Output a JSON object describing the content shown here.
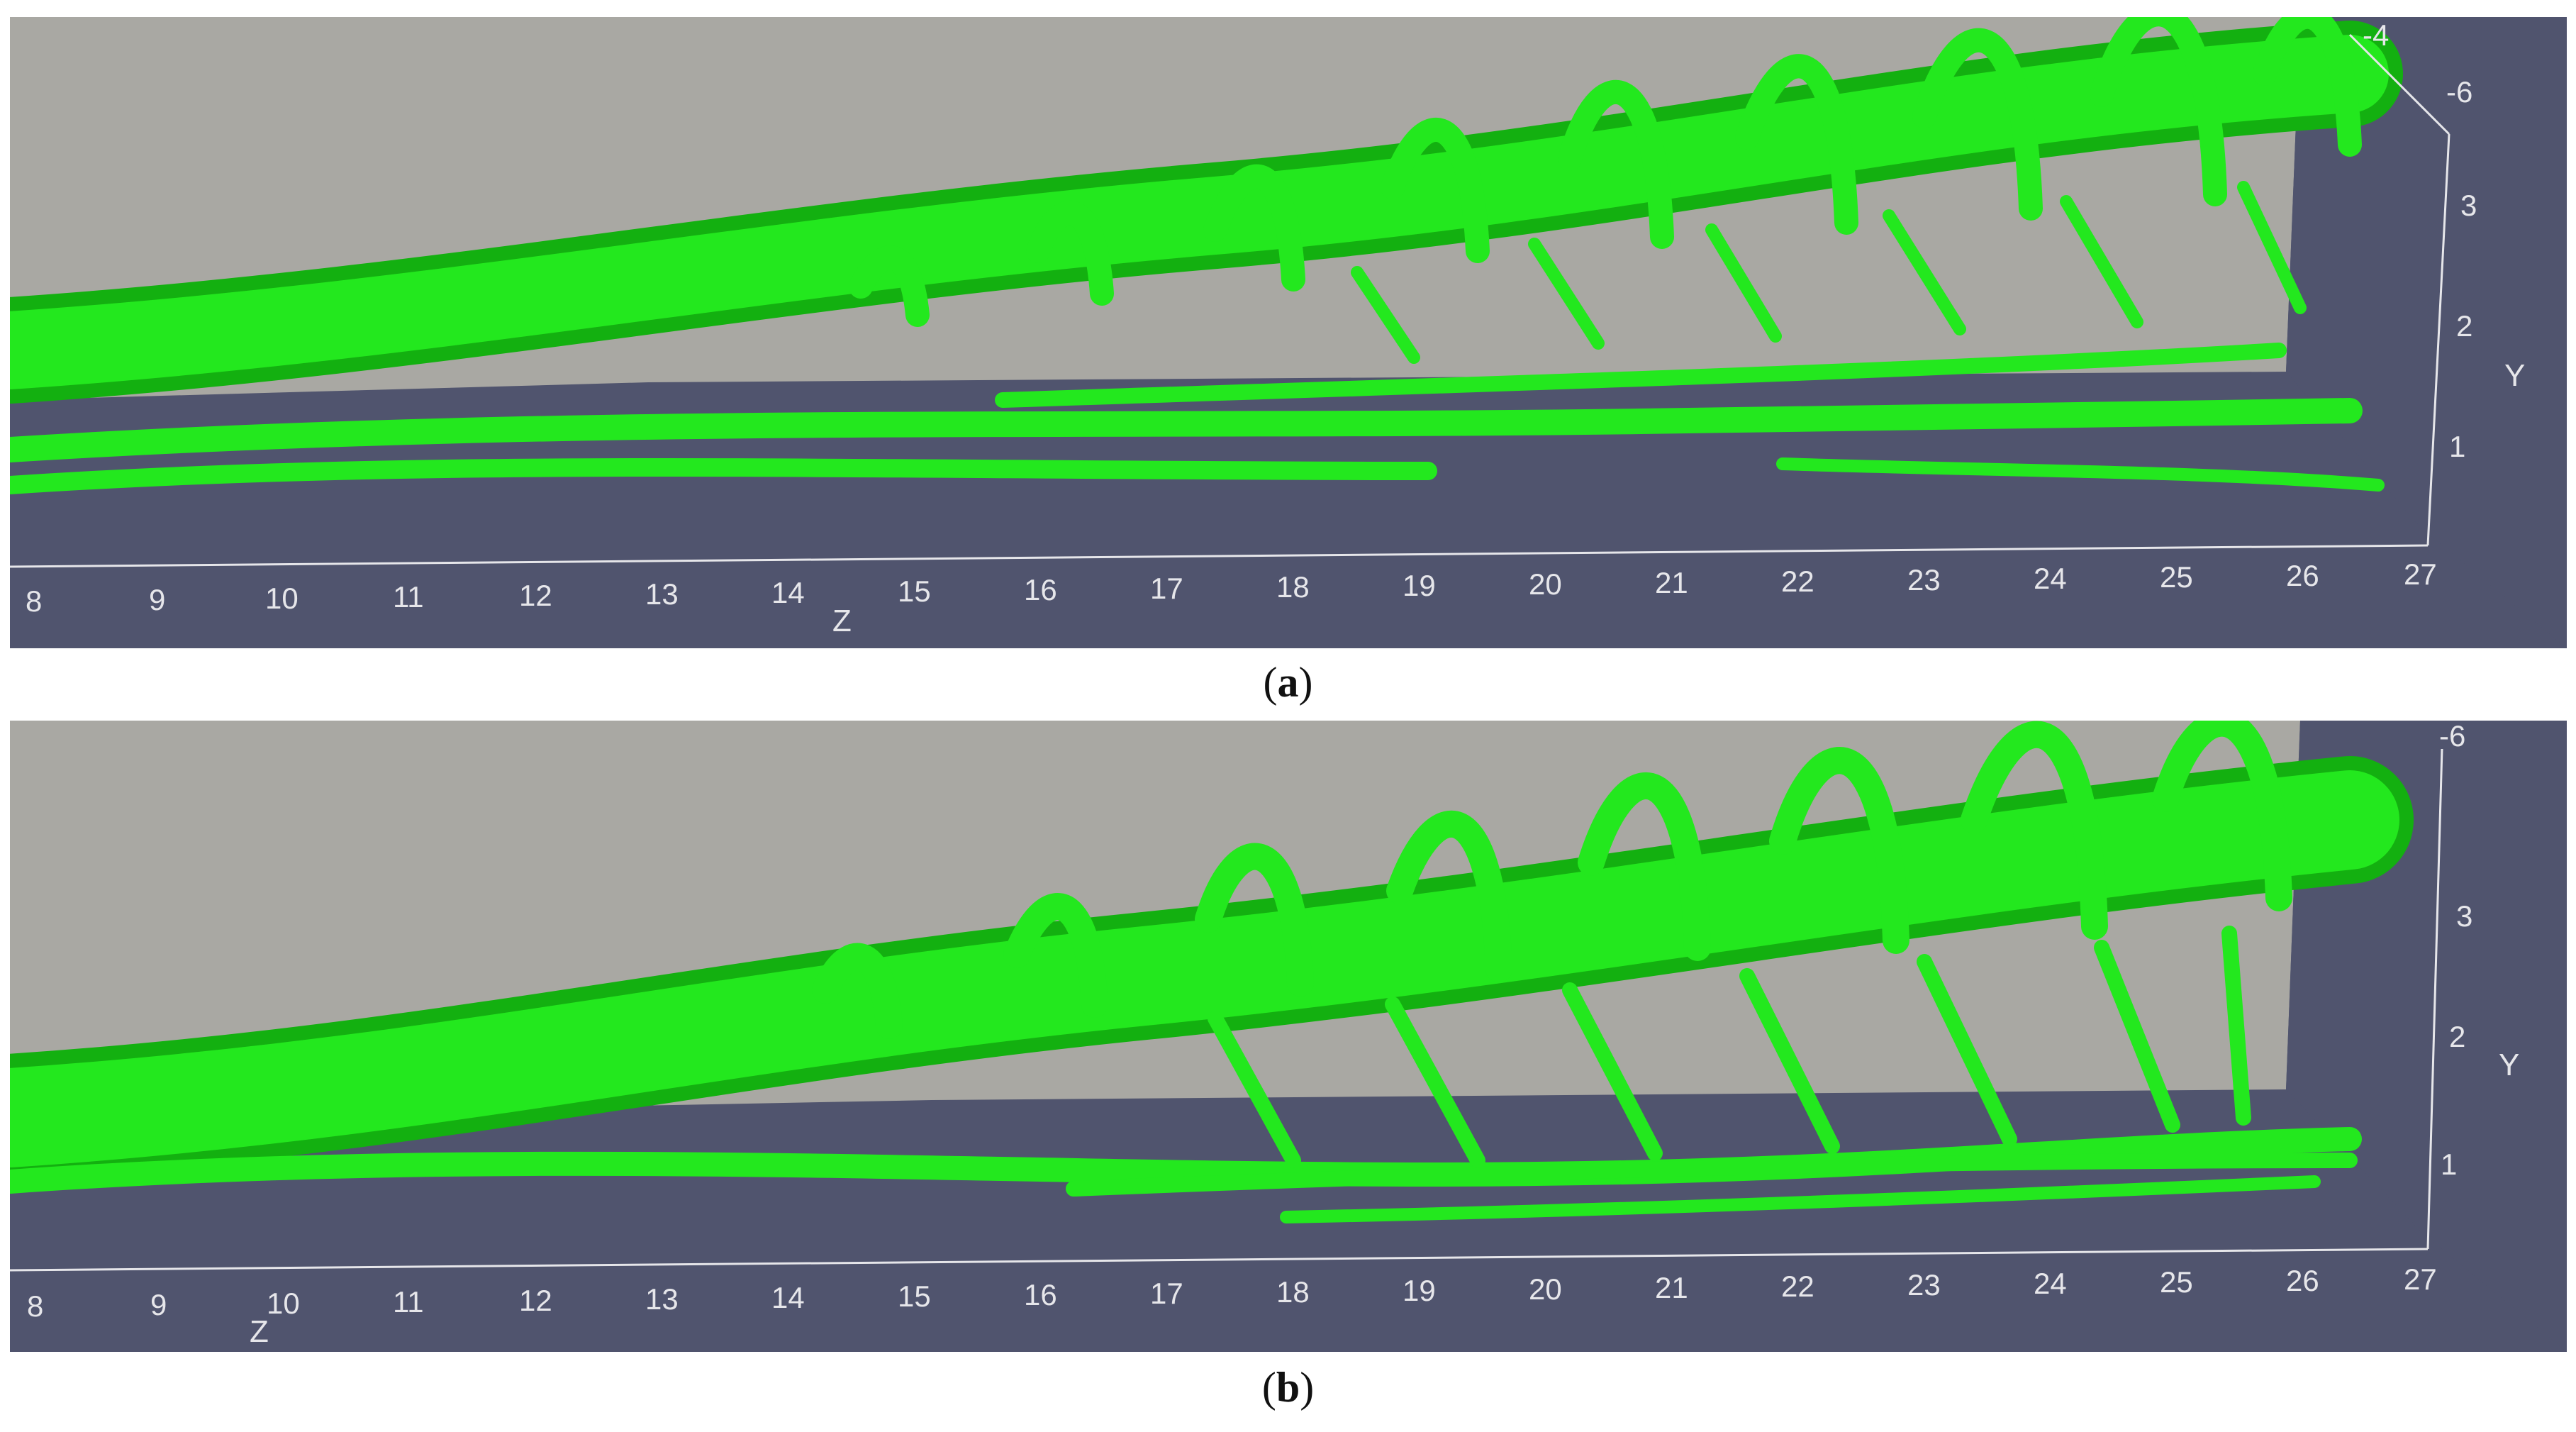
{
  "figure": {
    "panels": [
      {
        "id": "a",
        "caption_open": "(",
        "caption_letter": "a",
        "caption_close": ")",
        "z_axis_title": "Z",
        "y_axis_title": "Y",
        "z_ticks": [
          "8",
          "9",
          "10",
          "11",
          "12",
          "13",
          "14",
          "15",
          "16",
          "17",
          "18",
          "19",
          "20",
          "21",
          "22",
          "23",
          "24",
          "25",
          "26",
          "27"
        ],
        "y_ticks": [
          "-4",
          "-6",
          "3",
          "2",
          "1"
        ]
      },
      {
        "id": "b",
        "caption_open": "(",
        "caption_letter": "b",
        "caption_close": ")",
        "z_axis_title": "Z",
        "y_axis_title": "Y",
        "z_ticks": [
          "8",
          "9",
          "10",
          "11",
          "12",
          "13",
          "14",
          "15",
          "16",
          "17",
          "18",
          "19",
          "20",
          "21",
          "22",
          "23",
          "24",
          "25",
          "26",
          "27"
        ],
        "y_ticks": [
          "-6",
          "3",
          "2",
          "1"
        ]
      }
    ],
    "colors": {
      "floor": "#50546e",
      "back_wall": "#a9a8a3",
      "vortex": "#23e81e",
      "vortex_dark": "#13b010",
      "axis": "#e6e6ea",
      "caption_text": "#111111"
    }
  }
}
